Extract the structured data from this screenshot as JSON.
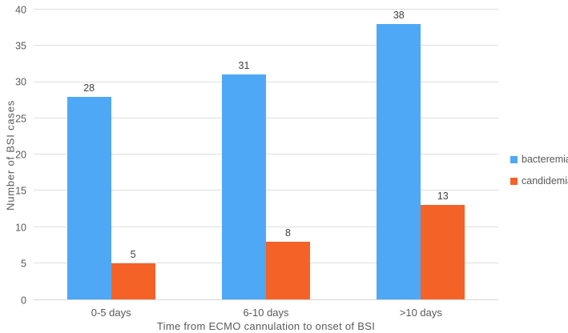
{
  "chart_data": {
    "type": "bar",
    "title": "",
    "categories": [
      "0-5 days",
      "6-10 days",
      ">10 days"
    ],
    "series": [
      {
        "name": "bacteremia",
        "color": "#4FA8F5",
        "values": [
          28,
          31,
          38
        ]
      },
      {
        "name": "candidemia",
        "color": "#F56227",
        "values": [
          5,
          8,
          13
        ]
      }
    ],
    "xlabel": "Time from ECMO cannulation to onset of BSI",
    "ylabel": "Number of BSI cases",
    "ylim": [
      0,
      40
    ],
    "ytick_step": 5,
    "yticks": [
      0,
      5,
      10,
      15,
      20,
      25,
      30,
      35,
      40
    ],
    "grid": "horizontal",
    "legend_position": "right",
    "colors": {
      "gridline": "#dedede",
      "axis_line": "#d6d6d6",
      "tick_text": "#595959",
      "value_label_text": "#404040",
      "background": "#ffffff"
    },
    "value_labels_shown": true
  }
}
